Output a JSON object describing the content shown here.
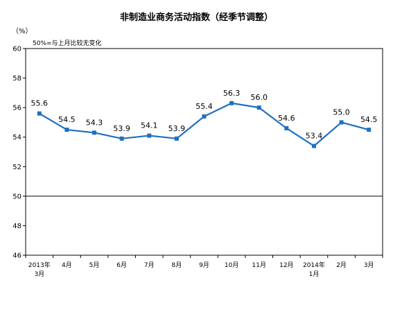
{
  "chart_data": {
    "type": "line",
    "title": "非制造业商务活动指数（经季节调整）",
    "ylabel": "（%）",
    "annotation": "50%=与上月比较无变化",
    "ylim": [
      46,
      60
    ],
    "yticks": [
      46,
      48,
      50,
      52,
      54,
      56,
      58,
      60
    ],
    "reference_line": 50,
    "categories": [
      [
        "2013年",
        "3月"
      ],
      [
        "4月"
      ],
      [
        "5月"
      ],
      [
        "6月"
      ],
      [
        "7月"
      ],
      [
        "8月"
      ],
      [
        "9月"
      ],
      [
        "10月"
      ],
      [
        "11月"
      ],
      [
        "12月"
      ],
      [
        "2014年",
        "1月"
      ],
      [
        "2月"
      ],
      [
        "3月"
      ]
    ],
    "series": [
      {
        "values": [
          55.6,
          54.5,
          54.3,
          53.9,
          54.1,
          53.9,
          55.4,
          56.3,
          56.0,
          54.6,
          53.4,
          55.0,
          54.5
        ],
        "labels": [
          "55.6",
          "54.5",
          "54.3",
          "53.9",
          "54.1",
          "53.9",
          "55.4",
          "56.3",
          "56.0",
          "54.6",
          "53.4",
          "55.0",
          "54.5"
        ],
        "color": "#1f6fc2"
      }
    ],
    "grid": false,
    "legend": "none"
  }
}
